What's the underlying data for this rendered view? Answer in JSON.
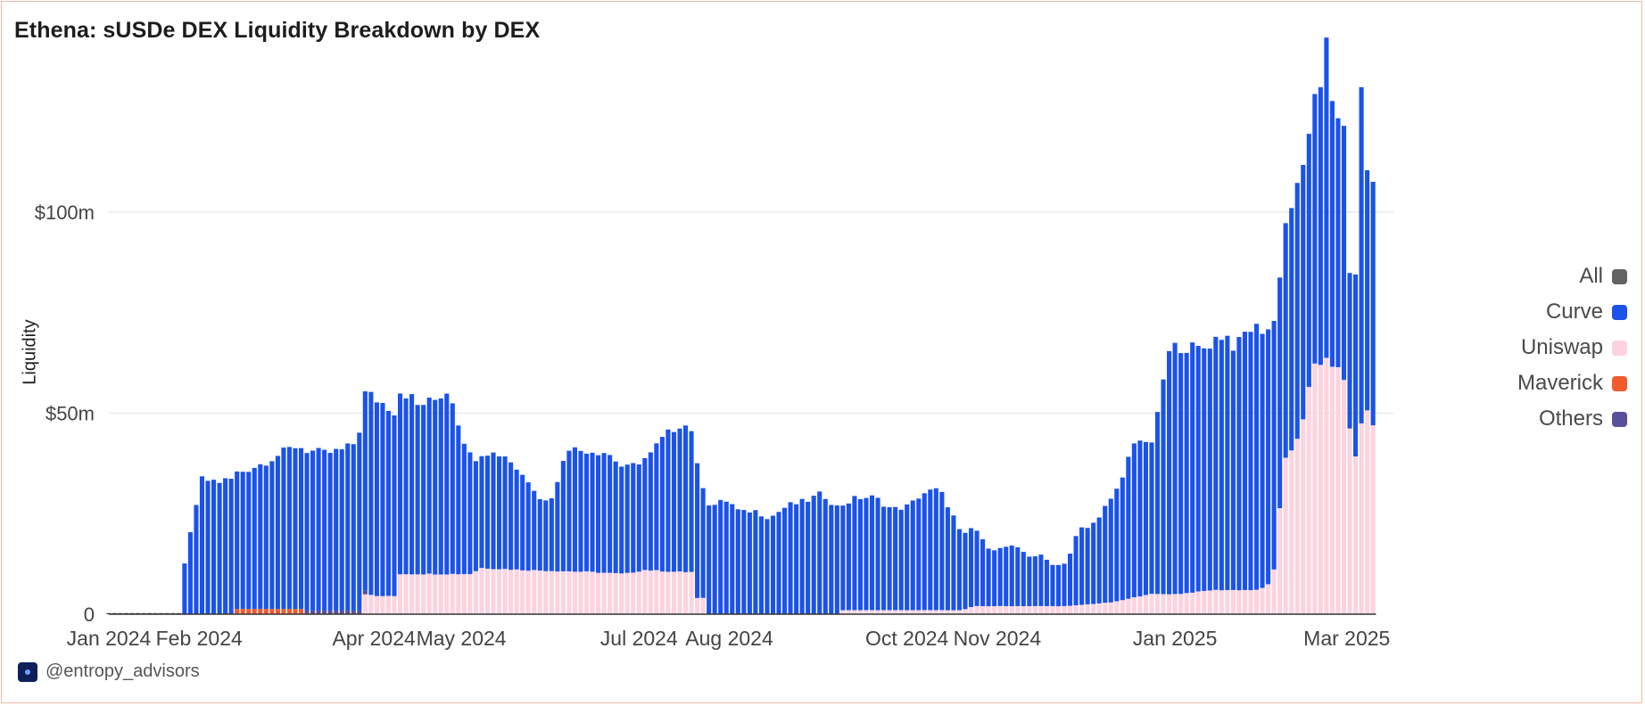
{
  "title": "Ethena: sUSDe DEX Liquidity Breakdown by DEX",
  "footer": {
    "handle": "@entropy_advisors",
    "logo_icon": "entropy-logo-icon"
  },
  "legend": [
    {
      "label": "All",
      "color": "#636363"
    },
    {
      "label": "Curve",
      "color": "#1a52ea"
    },
    {
      "label": "Uniswap",
      "color": "#fdd3df"
    },
    {
      "label": "Maverick",
      "color": "#f05b2e"
    },
    {
      "label": "Others",
      "color": "#59509a"
    }
  ],
  "chart_data": {
    "type": "bar",
    "stacked": true,
    "title": "Ethena: sUSDe DEX Liquidity Breakdown by DEX",
    "xlabel": "",
    "ylabel": "Liquidity",
    "ylim": [
      0,
      135
    ],
    "y_unit": "$m",
    "y_ticks": [
      {
        "value": 0,
        "label": "0"
      },
      {
        "value": 50,
        "label": "$50m"
      },
      {
        "value": 100,
        "label": "$100m"
      }
    ],
    "x_range": [
      "2024-01-01",
      "2025-03-01"
    ],
    "x_ticks": [
      "Jan 2024",
      "Feb 2024",
      "Apr 2024",
      "May 2024",
      "Jul 2024",
      "Aug 2024",
      "Oct 2024",
      "Nov 2024",
      "Jan 2025",
      "Mar 2025"
    ],
    "grid": true,
    "legend_position": "right",
    "bar_interval_days": 2,
    "series_order": [
      "Uniswap",
      "Maverick",
      "Others",
      "Curve"
    ],
    "series": [
      {
        "name": "Curve",
        "color": "#1a52ea",
        "anchors": [
          [
            "2024-01-26",
            5.5
          ],
          [
            "2024-01-28",
            19
          ],
          [
            "2024-01-30",
            21
          ],
          [
            "2024-02-01",
            33.5
          ],
          [
            "2024-02-08",
            33
          ],
          [
            "2024-02-15",
            34
          ],
          [
            "2024-02-22",
            36
          ],
          [
            "2024-03-01",
            39
          ],
          [
            "2024-03-05",
            40.5
          ],
          [
            "2024-03-15",
            39
          ],
          [
            "2024-03-22",
            40
          ],
          [
            "2024-03-26",
            42
          ],
          [
            "2024-03-28",
            48
          ],
          [
            "2024-03-30",
            50
          ],
          [
            "2024-04-04",
            48
          ],
          [
            "2024-04-08",
            46
          ],
          [
            "2024-04-10",
            45.5
          ],
          [
            "2024-04-14",
            44
          ],
          [
            "2024-04-16",
            42
          ],
          [
            "2024-04-21",
            43
          ],
          [
            "2024-04-27",
            46
          ],
          [
            "2024-05-01",
            35
          ],
          [
            "2024-05-05",
            28
          ],
          [
            "2024-05-11",
            29
          ],
          [
            "2024-05-17",
            28
          ],
          [
            "2024-05-21",
            24
          ],
          [
            "2024-05-23",
            23.5
          ],
          [
            "2024-05-29",
            17
          ],
          [
            "2024-06-02",
            19
          ],
          [
            "2024-06-06",
            31
          ],
          [
            "2024-06-12",
            30
          ],
          [
            "2024-06-20",
            30
          ],
          [
            "2024-06-26",
            26
          ],
          [
            "2024-07-04",
            28
          ],
          [
            "2024-07-10",
            34
          ],
          [
            "2024-07-16",
            37
          ],
          [
            "2024-07-20",
            35
          ],
          [
            "2024-07-23",
            28
          ],
          [
            "2024-07-28",
            27
          ],
          [
            "2024-07-30",
            28.5
          ],
          [
            "2024-08-01",
            28
          ],
          [
            "2024-08-05",
            25
          ],
          [
            "2024-08-09",
            26
          ],
          [
            "2024-08-15",
            24
          ],
          [
            "2024-08-21",
            27
          ],
          [
            "2024-08-27",
            28
          ],
          [
            "2024-09-02",
            30
          ],
          [
            "2024-09-08",
            26
          ],
          [
            "2024-09-14",
            28
          ],
          [
            "2024-09-20",
            28
          ],
          [
            "2024-09-26",
            25
          ],
          [
            "2024-10-02",
            26
          ],
          [
            "2024-10-06",
            29
          ],
          [
            "2024-10-12",
            30
          ],
          [
            "2024-10-16",
            25
          ],
          [
            "2024-10-20",
            18
          ],
          [
            "2024-10-24",
            20
          ],
          [
            "2024-10-28",
            15
          ],
          [
            "2024-11-01",
            14
          ],
          [
            "2024-11-05",
            15
          ],
          [
            "2024-11-09",
            14
          ],
          [
            "2024-11-13",
            12
          ],
          [
            "2024-11-15",
            13
          ],
          [
            "2024-11-21",
            10
          ],
          [
            "2024-11-25",
            11
          ],
          [
            "2024-11-29",
            19
          ],
          [
            "2024-12-03",
            19
          ],
          [
            "2024-12-07",
            23
          ],
          [
            "2024-12-11",
            26
          ],
          [
            "2024-12-15",
            32
          ],
          [
            "2024-12-17",
            38
          ],
          [
            "2024-12-19",
            40
          ],
          [
            "2024-12-23",
            36
          ],
          [
            "2024-12-25",
            40
          ],
          [
            "2024-12-27",
            48
          ],
          [
            "2024-12-29",
            59
          ],
          [
            "2025-01-02",
            62
          ],
          [
            "2025-01-06",
            61
          ],
          [
            "2025-01-10",
            60
          ],
          [
            "2025-01-14",
            62
          ],
          [
            "2025-01-18",
            64
          ],
          [
            "2025-01-22",
            60
          ],
          [
            "2025-01-26",
            65
          ],
          [
            "2025-01-30",
            65
          ],
          [
            "2025-02-03",
            63
          ],
          [
            "2025-02-07",
            57
          ],
          [
            "2025-02-11",
            62
          ],
          [
            "2025-02-15",
            63
          ],
          [
            "2025-02-21",
            68
          ],
          [
            "2025-02-22",
            80
          ],
          [
            "2025-02-23",
            70
          ],
          [
            "2025-02-25",
            64
          ],
          [
            "2025-02-27",
            62
          ],
          [
            "2025-03-01",
            62
          ],
          [
            "2025-03-02",
            38
          ],
          [
            "2025-03-04",
            45
          ],
          [
            "2025-03-05",
            63
          ],
          [
            "2025-03-06",
            85
          ],
          [
            "2025-03-08",
            58
          ],
          [
            "2025-03-10",
            62
          ]
        ]
      },
      {
        "name": "Uniswap",
        "color": "#fdd3df",
        "anchors": [
          [
            "2024-03-28",
            0
          ],
          [
            "2024-03-29",
            5
          ],
          [
            "2024-04-02",
            4.5
          ],
          [
            "2024-04-08",
            4.5
          ],
          [
            "2024-04-10",
            10
          ],
          [
            "2024-04-20",
            10
          ],
          [
            "2024-04-26",
            10
          ],
          [
            "2024-05-04",
            10
          ],
          [
            "2024-05-08",
            11.5
          ],
          [
            "2024-05-22",
            11
          ],
          [
            "2024-06-14",
            10.5
          ],
          [
            "2024-06-26",
            10
          ],
          [
            "2024-07-03",
            11
          ],
          [
            "2024-07-14",
            10.5
          ],
          [
            "2024-07-20",
            10.5
          ],
          [
            "2024-07-21",
            4
          ],
          [
            "2024-07-24",
            4
          ],
          [
            "2024-07-25",
            0
          ],
          [
            "2024-09-08",
            0
          ],
          [
            "2024-09-09",
            1
          ],
          [
            "2024-10-12",
            1
          ],
          [
            "2024-10-20",
            1
          ],
          [
            "2024-10-24",
            2
          ],
          [
            "2024-11-13",
            2
          ],
          [
            "2024-11-21",
            2
          ],
          [
            "2024-11-25",
            2
          ],
          [
            "2024-12-11",
            3
          ],
          [
            "2024-12-23",
            5
          ],
          [
            "2025-01-02",
            5
          ],
          [
            "2025-01-14",
            6
          ],
          [
            "2025-01-24",
            6
          ],
          [
            "2025-01-30",
            6
          ],
          [
            "2025-02-03",
            8
          ],
          [
            "2025-02-05",
            14
          ],
          [
            "2025-02-07",
            38
          ],
          [
            "2025-02-11",
            42
          ],
          [
            "2025-02-15",
            50
          ],
          [
            "2025-02-17",
            62
          ],
          [
            "2025-02-23",
            63
          ],
          [
            "2025-02-27",
            60
          ],
          [
            "2025-03-01",
            57
          ],
          [
            "2025-03-03",
            35
          ],
          [
            "2025-03-07",
            52
          ],
          [
            "2025-03-10",
            47
          ]
        ]
      },
      {
        "name": "Maverick",
        "color": "#f05b2e",
        "anchors": [
          [
            "2024-02-12",
            0
          ],
          [
            "2024-02-13",
            1.3
          ],
          [
            "2024-03-08",
            1.3
          ],
          [
            "2024-03-09",
            0
          ]
        ]
      },
      {
        "name": "Others",
        "color": "#59509a",
        "anchors": [
          [
            "2024-03-08",
            0
          ],
          [
            "2024-03-09",
            0.9
          ],
          [
            "2024-03-29",
            0.9
          ],
          [
            "2024-03-30",
            0
          ]
        ]
      }
    ]
  }
}
